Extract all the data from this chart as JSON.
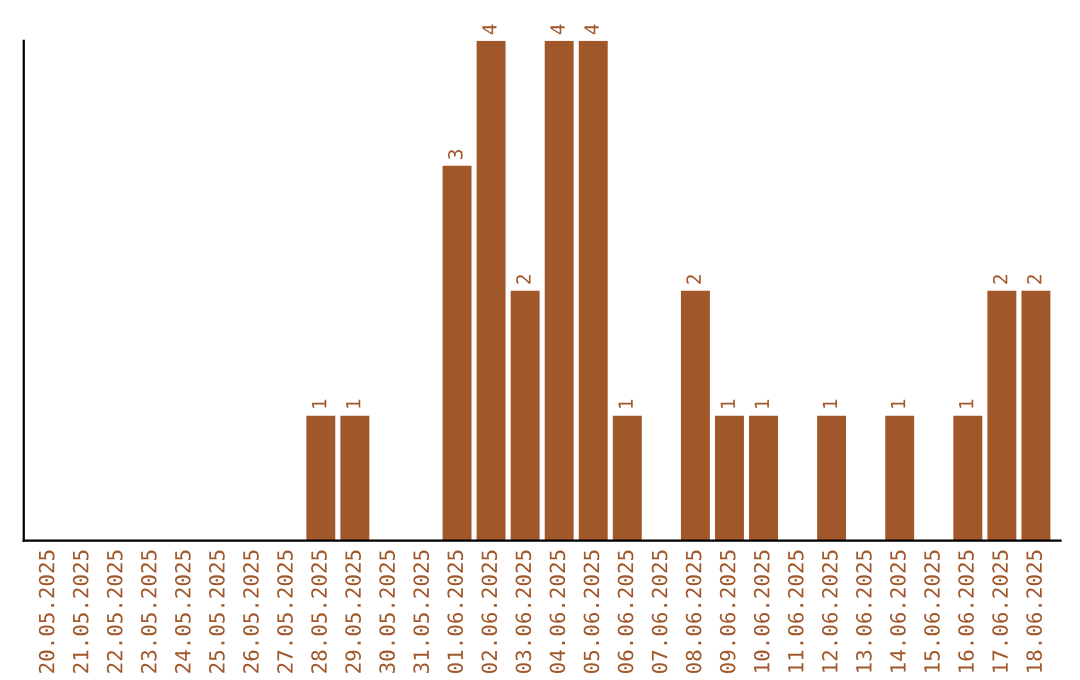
{
  "chart_data": {
    "type": "bar",
    "categories": [
      "20.05.2025",
      "21.05.2025",
      "22.05.2025",
      "23.05.2025",
      "24.05.2025",
      "25.05.2025",
      "26.05.2025",
      "27.05.2025",
      "28.05.2025",
      "29.05.2025",
      "30.05.2025",
      "31.05.2025",
      "01.06.2025",
      "02.06.2025",
      "03.06.2025",
      "04.06.2025",
      "05.06.2025",
      "06.06.2025",
      "07.06.2025",
      "08.06.2025",
      "09.06.2025",
      "10.06.2025",
      "11.06.2025",
      "12.06.2025",
      "13.06.2025",
      "14.06.2025",
      "15.06.2025",
      "16.06.2025",
      "17.06.2025",
      "18.06.2025"
    ],
    "values": [
      0,
      0,
      0,
      0,
      0,
      0,
      0,
      0,
      1,
      1,
      0,
      0,
      3,
      4,
      2,
      4,
      4,
      1,
      0,
      2,
      1,
      1,
      0,
      1,
      0,
      1,
      0,
      1,
      2,
      2
    ],
    "value_labels": [
      null,
      null,
      null,
      null,
      null,
      null,
      null,
      null,
      "1",
      "1",
      null,
      null,
      "3",
      "4",
      "2",
      "4",
      "4",
      "1",
      null,
      "2",
      "1",
      "1",
      null,
      "1",
      null,
      "1",
      null,
      "1",
      "2",
      "2"
    ],
    "color": "#a0572a",
    "grid": false,
    "legend": false
  }
}
